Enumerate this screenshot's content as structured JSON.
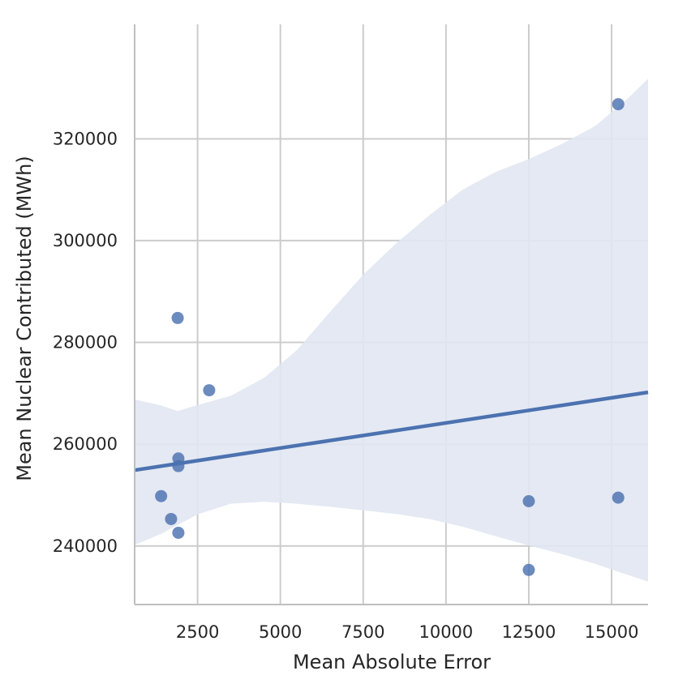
{
  "chart_data": {
    "type": "scatter",
    "title": "",
    "xlabel": "Mean Absolute Error",
    "ylabel": "Mean Nuclear Contributed (MWh)",
    "xlim": [
      600,
      16100
    ],
    "ylim": [
      228500,
      342500
    ],
    "x_ticks": [
      2500,
      5000,
      7500,
      10000,
      12500,
      15000
    ],
    "y_ticks": [
      240000,
      260000,
      280000,
      300000,
      320000
    ],
    "grid": true,
    "legend": "none",
    "colors": {
      "points": "#4c72b0",
      "line": "#4c72b0",
      "band": "#e1e7f2",
      "grid": "#cccccc",
      "axis": "#bfbfbf"
    },
    "points": [
      {
        "x": 1900,
        "y": 284800
      },
      {
        "x": 2850,
        "y": 270600
      },
      {
        "x": 1920,
        "y": 257200
      },
      {
        "x": 1920,
        "y": 255700
      },
      {
        "x": 1400,
        "y": 249800
      },
      {
        "x": 1700,
        "y": 245300
      },
      {
        "x": 1920,
        "y": 242600
      },
      {
        "x": 12500,
        "y": 248800
      },
      {
        "x": 12500,
        "y": 235300
      },
      {
        "x": 15200,
        "y": 249500
      },
      {
        "x": 15200,
        "y": 326800
      }
    ],
    "regression_line": [
      {
        "x": 600,
        "y": 254900
      },
      {
        "x": 16100,
        "y": 270200
      }
    ],
    "confidence_band": {
      "upper": [
        {
          "x": 600,
          "y": 268800
        },
        {
          "x": 1400,
          "y": 267600
        },
        {
          "x": 1900,
          "y": 266500
        },
        {
          "x": 2500,
          "y": 267700
        },
        {
          "x": 3500,
          "y": 269500
        },
        {
          "x": 4500,
          "y": 273000
        },
        {
          "x": 5500,
          "y": 278500
        },
        {
          "x": 6500,
          "y": 286000
        },
        {
          "x": 7500,
          "y": 293300
        },
        {
          "x": 8500,
          "y": 299500
        },
        {
          "x": 9500,
          "y": 305000
        },
        {
          "x": 10500,
          "y": 310000
        },
        {
          "x": 11500,
          "y": 313500
        },
        {
          "x": 12500,
          "y": 316000
        },
        {
          "x": 13500,
          "y": 319000
        },
        {
          "x": 14500,
          "y": 322500
        },
        {
          "x": 15500,
          "y": 328000
        },
        {
          "x": 16100,
          "y": 331800
        }
      ],
      "lower": [
        {
          "x": 600,
          "y": 240200
        },
        {
          "x": 1400,
          "y": 242400
        },
        {
          "x": 2500,
          "y": 246200
        },
        {
          "x": 3500,
          "y": 248300
        },
        {
          "x": 4500,
          "y": 248700
        },
        {
          "x": 5500,
          "y": 248300
        },
        {
          "x": 6500,
          "y": 247700
        },
        {
          "x": 7500,
          "y": 247000
        },
        {
          "x": 8500,
          "y": 246300
        },
        {
          "x": 9500,
          "y": 245300
        },
        {
          "x": 10500,
          "y": 243800
        },
        {
          "x": 11500,
          "y": 241900
        },
        {
          "x": 12500,
          "y": 240100
        },
        {
          "x": 13500,
          "y": 238400
        },
        {
          "x": 14500,
          "y": 236500
        },
        {
          "x": 15500,
          "y": 234300
        },
        {
          "x": 16100,
          "y": 233000
        }
      ]
    }
  }
}
